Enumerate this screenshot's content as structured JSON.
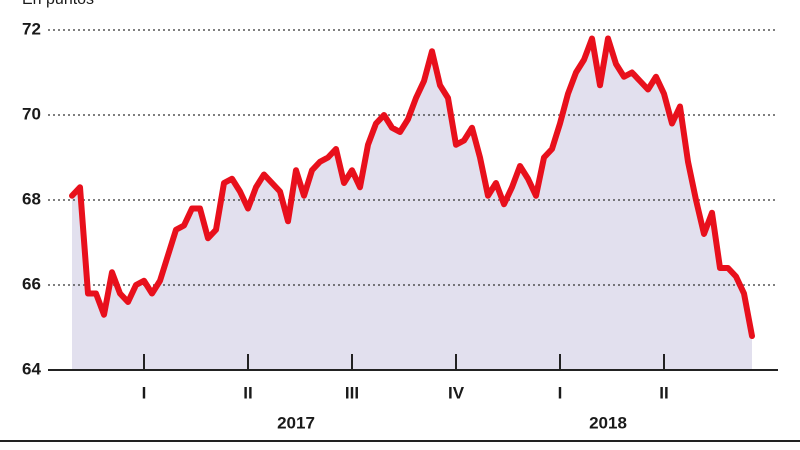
{
  "chart_data": {
    "type": "line",
    "subtitle": "En puntos",
    "x": [
      0,
      1,
      2,
      3,
      4,
      5,
      6,
      7,
      8,
      9,
      10,
      11,
      12,
      13,
      14,
      15,
      16,
      17,
      18,
      19,
      20,
      21,
      22,
      23,
      24,
      25,
      26,
      27,
      28,
      29,
      30,
      31,
      32,
      33,
      34,
      35,
      36,
      37,
      38,
      39,
      40,
      41,
      42,
      43,
      44,
      45,
      46,
      47,
      48,
      49,
      50,
      51,
      52,
      53,
      54,
      55,
      56,
      57,
      58,
      59,
      60,
      61,
      62,
      63,
      64,
      65,
      66,
      67,
      68,
      69,
      70,
      71,
      72,
      73,
      74,
      75,
      76,
      77,
      78,
      79,
      80,
      81,
      82,
      83,
      84,
      85
    ],
    "values": [
      68.1,
      68.3,
      65.8,
      65.8,
      65.3,
      66.3,
      65.8,
      65.6,
      66.0,
      66.1,
      65.8,
      66.1,
      66.7,
      67.3,
      67.4,
      67.8,
      67.8,
      67.1,
      67.3,
      68.4,
      68.5,
      68.2,
      67.8,
      68.3,
      68.6,
      68.4,
      68.2,
      67.5,
      68.7,
      68.1,
      68.7,
      68.9,
      69.0,
      69.2,
      68.4,
      68.7,
      68.3,
      69.3,
      69.8,
      70.0,
      69.7,
      69.6,
      69.9,
      70.4,
      70.8,
      71.5,
      70.7,
      70.4,
      69.3,
      69.4,
      69.7,
      69.0,
      68.1,
      68.4,
      67.9,
      68.3,
      68.8,
      68.5,
      68.1,
      69.0,
      69.2,
      69.8,
      70.5,
      71.0,
      71.3,
      71.8,
      70.7,
      71.8,
      71.2,
      70.9,
      71.0,
      70.8,
      70.6,
      70.9,
      70.5,
      69.8,
      70.2,
      68.9,
      68.0,
      67.2,
      67.7,
      66.4,
      66.4,
      66.2,
      65.8,
      64.8
    ],
    "color": "#e8101c",
    "fill_color": "#e2e0ee",
    "xlim": [
      -3,
      88.25
    ],
    "xticks": [
      {
        "value": 9,
        "label": "I"
      },
      {
        "value": 22,
        "label": "II"
      },
      {
        "value": 35,
        "label": "III"
      },
      {
        "value": 48,
        "label": "IV"
      },
      {
        "value": 61,
        "label": "I"
      },
      {
        "value": 74,
        "label": "II"
      }
    ],
    "year_labels": [
      {
        "value": 28,
        "label": "2017"
      },
      {
        "value": 67,
        "label": "2018"
      }
    ],
    "ylim": [
      64,
      72
    ],
    "yticks": [
      64,
      66,
      68,
      70,
      72
    ],
    "grid": true
  }
}
